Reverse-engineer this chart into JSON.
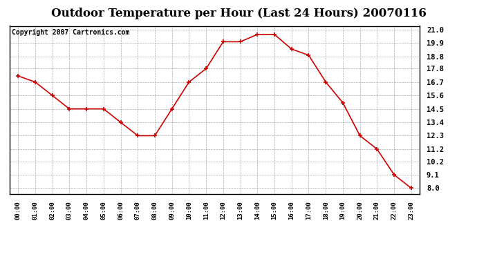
{
  "title": "Outdoor Temperature per Hour (Last 24 Hours) 20070116",
  "copyright_text": "Copyright 2007 Cartronics.com",
  "hours": [
    "00:00",
    "01:00",
    "02:00",
    "03:00",
    "04:00",
    "05:00",
    "06:00",
    "07:00",
    "08:00",
    "09:00",
    "10:00",
    "11:00",
    "12:00",
    "13:00",
    "14:00",
    "15:00",
    "16:00",
    "17:00",
    "18:00",
    "19:00",
    "20:00",
    "21:00",
    "22:00",
    "23:00"
  ],
  "temps": [
    17.2,
    16.7,
    15.6,
    14.5,
    14.5,
    14.5,
    13.4,
    12.3,
    12.3,
    14.5,
    16.7,
    17.8,
    20.0,
    20.0,
    20.6,
    20.6,
    19.4,
    18.9,
    16.7,
    15.0,
    12.3,
    11.2,
    9.1,
    8.0
  ],
  "line_color": "#cc0000",
  "marker_color": "#cc0000",
  "bg_color": "#ffffff",
  "plot_bg_color": "#ffffff",
  "grid_color": "#aaaaaa",
  "yticks": [
    8.0,
    9.1,
    10.2,
    11.2,
    12.3,
    13.4,
    14.5,
    15.6,
    16.7,
    17.8,
    18.8,
    19.9,
    21.0
  ],
  "ylim": [
    7.5,
    21.3
  ],
  "title_fontsize": 12,
  "copyright_fontsize": 7
}
